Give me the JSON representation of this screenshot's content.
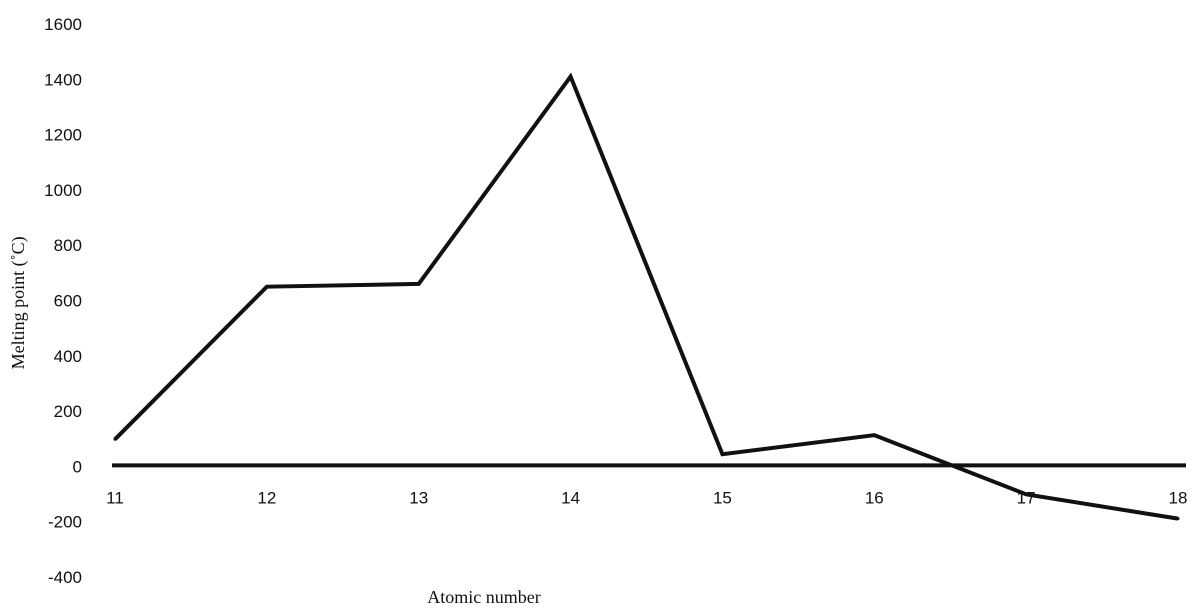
{
  "chart_data": {
    "type": "line",
    "title": "",
    "xlabel": "Atomic number",
    "ylabel": "Melting point (˚C)",
    "x": [
      11,
      12,
      13,
      14,
      15,
      16,
      17,
      18
    ],
    "series": [
      {
        "values": [
          98,
          650,
          660,
          1410,
          44,
          113,
          -101,
          -189
        ]
      }
    ],
    "xlim": [
      11,
      18
    ],
    "ylim": [
      -400,
      1600
    ],
    "yticks": [
      1600,
      1400,
      1200,
      1000,
      800,
      600,
      400,
      200,
      0,
      -200,
      -400
    ],
    "xticks": [
      11,
      12,
      13,
      14,
      15,
      16,
      17,
      18
    ],
    "grid": false,
    "legend": "none",
    "colors": {
      "line": "#111111",
      "axis": "#111111"
    }
  }
}
